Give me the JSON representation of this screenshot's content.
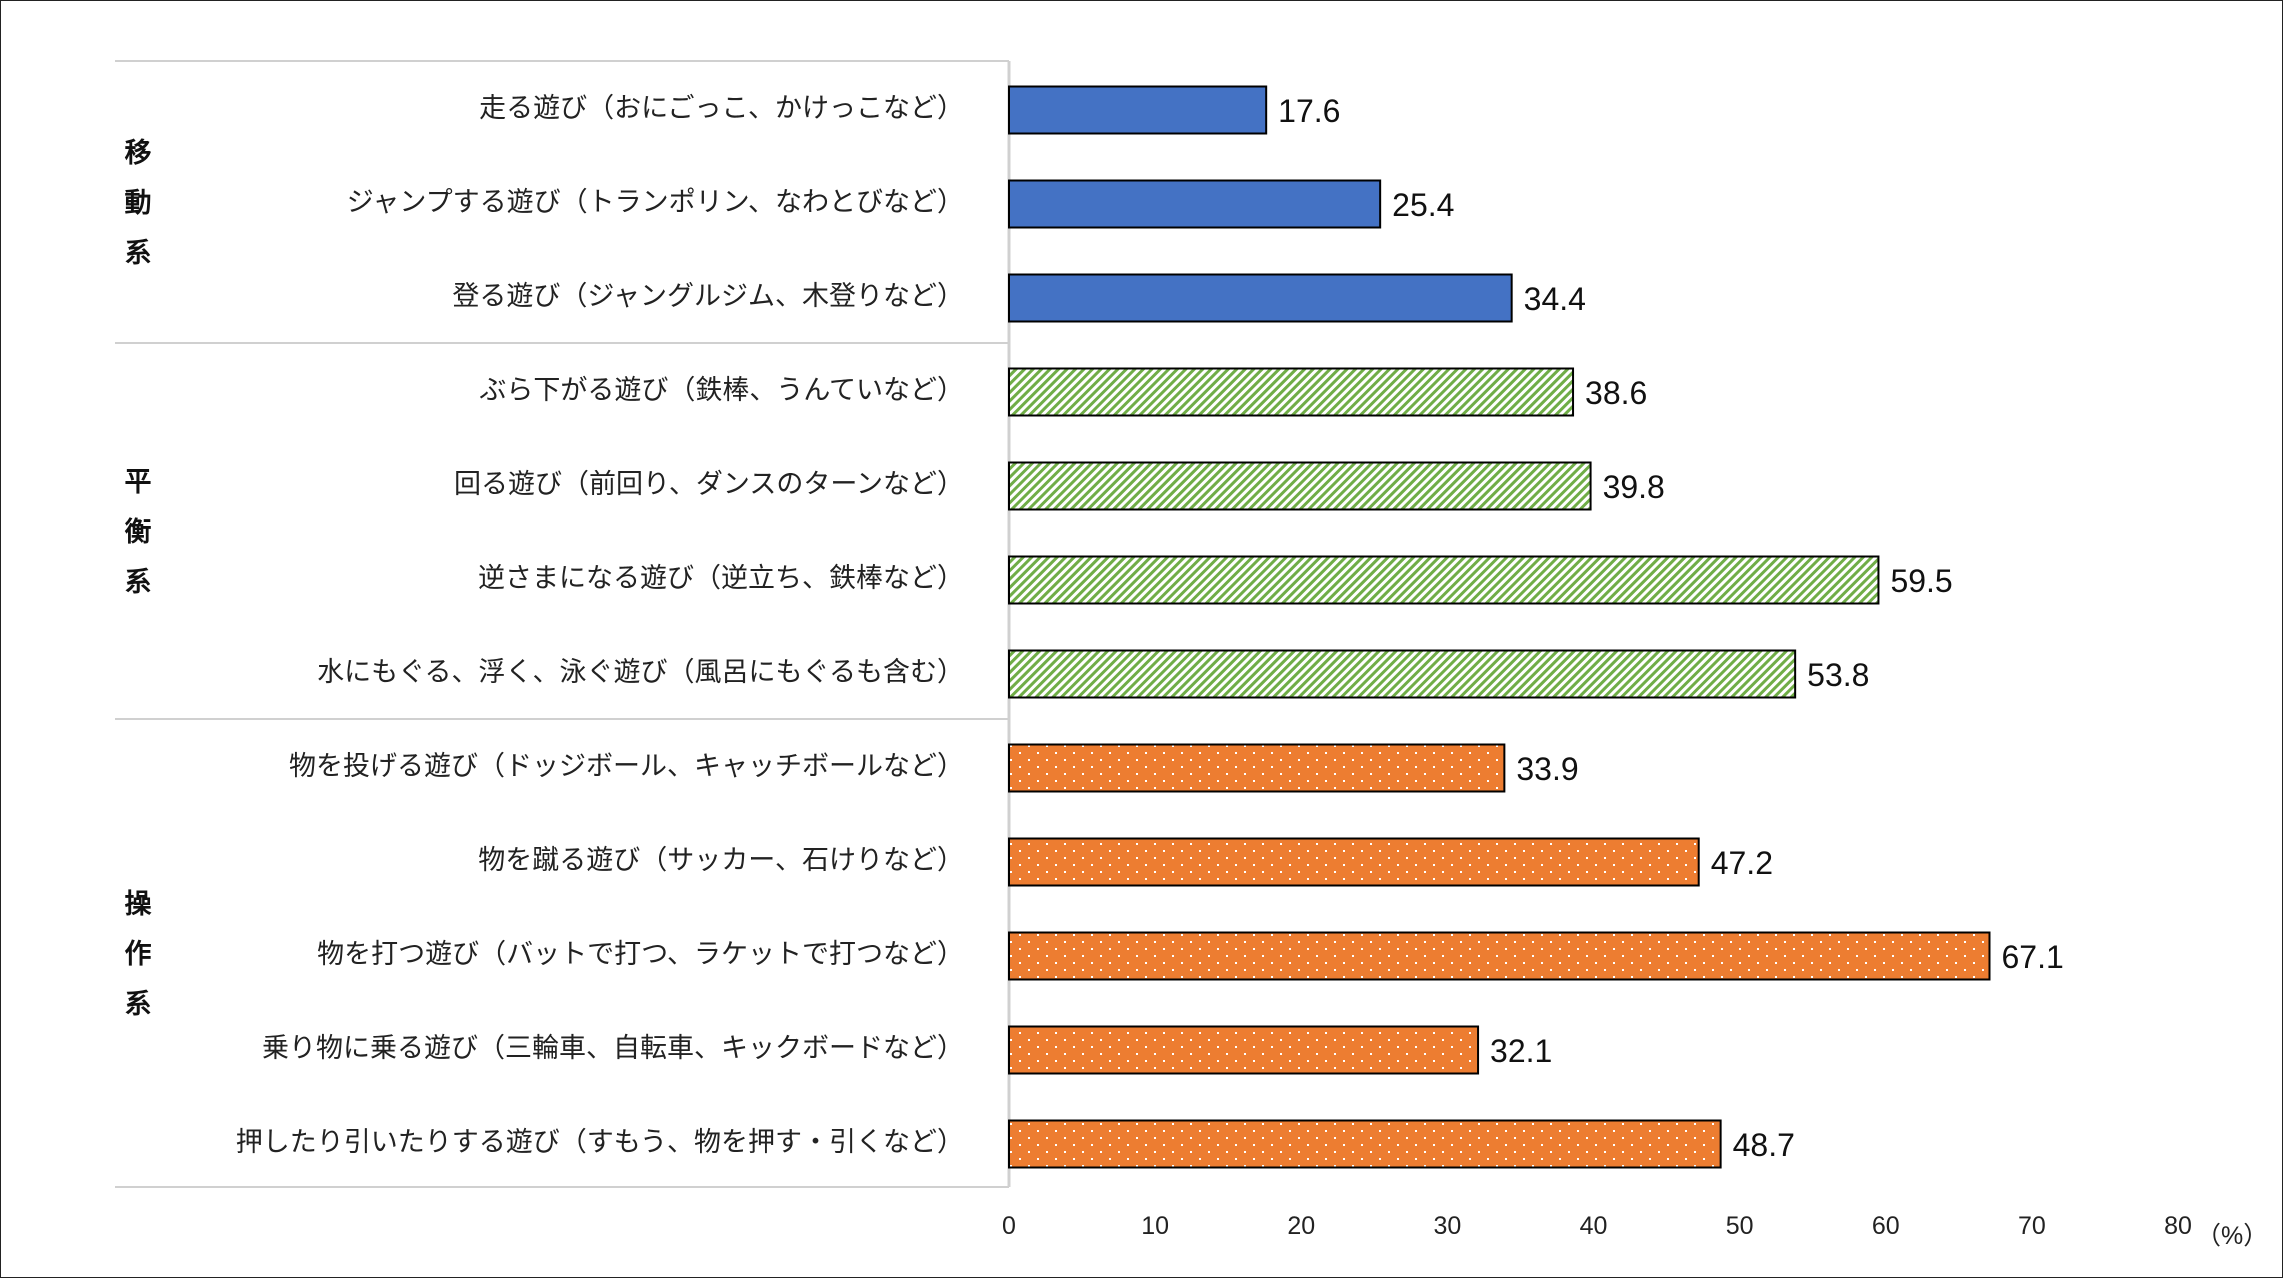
{
  "chart_data": {
    "type": "bar",
    "orientation": "horizontal",
    "unit_label": "（%）",
    "xlim": [
      0,
      80
    ],
    "xticks": [
      0,
      10,
      20,
      30,
      40,
      50,
      60,
      70,
      80
    ],
    "grid": false,
    "groups": [
      {
        "name": "移動系",
        "color": "#4472C4",
        "pattern": "solid",
        "categories": [
          "走る遊び（おにごっこ、かけっこなど）",
          "ジャンプする遊び（トランポリン、なわとびなど）",
          "登る遊び（ジャングルジム、木登りなど）"
        ],
        "values": [
          17.6,
          25.4,
          34.4
        ]
      },
      {
        "name": "平衡系",
        "color": "#70AD47",
        "pattern": "diagonal-hatch",
        "categories": [
          "ぶら下がる遊び（鉄棒、うんていなど）",
          "回る遊び（前回り、ダンスのターンなど）",
          "逆さまになる遊び（逆立ち、鉄棒など）",
          "水にもぐる、浮く、泳ぐ遊び（風呂にもぐるも含む）"
        ],
        "values": [
          38.6,
          39.8,
          59.5,
          53.8
        ]
      },
      {
        "name": "操作系",
        "color": "#ED7D31",
        "pattern": "dots",
        "categories": [
          "物を投げる遊び（ドッジボール、キャッチボールなど）",
          "物を蹴る遊び（サッカー、石けりなど）",
          "物を打つ遊び（バットで打つ、ラケットで打つなど）",
          "乗り物に乗る遊び（三輪車、自転車、キックボードなど）",
          "押したり引いたりする遊び（すもう、物を押す・引くなど）"
        ],
        "values": [
          33.9,
          47.2,
          67.1,
          32.1,
          48.7
        ]
      }
    ]
  }
}
